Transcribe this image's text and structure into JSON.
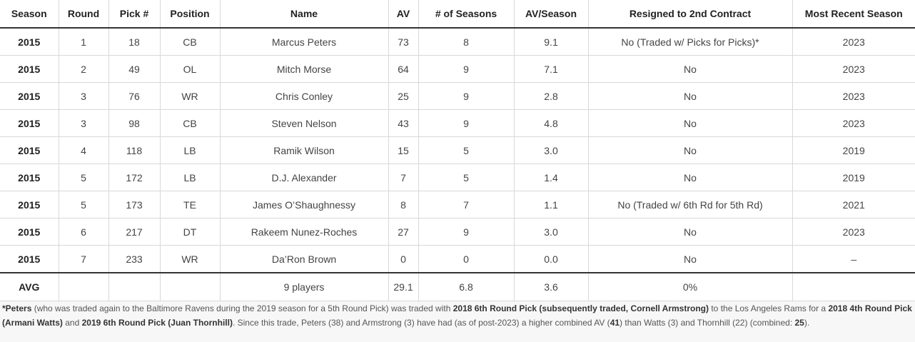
{
  "columns": [
    "Season",
    "Round",
    "Pick #",
    "Position",
    "Name",
    "AV",
    "# of Seasons",
    "AV/Season",
    "Resigned to 2nd Contract",
    "Most Recent Season"
  ],
  "rows": [
    [
      "2015",
      "1",
      "18",
      "CB",
      "Marcus Peters",
      "73",
      "8",
      "9.1",
      "No (Traded w/ Picks for Picks)*",
      "2023"
    ],
    [
      "2015",
      "2",
      "49",
      "OL",
      "Mitch Morse",
      "64",
      "9",
      "7.1",
      "No",
      "2023"
    ],
    [
      "2015",
      "3",
      "76",
      "WR",
      "Chris Conley",
      "25",
      "9",
      "2.8",
      "No",
      "2023"
    ],
    [
      "2015",
      "3",
      "98",
      "CB",
      "Steven Nelson",
      "43",
      "9",
      "4.8",
      "No",
      "2023"
    ],
    [
      "2015",
      "4",
      "118",
      "LB",
      "Ramik Wilson",
      "15",
      "5",
      "3.0",
      "No",
      "2019"
    ],
    [
      "2015",
      "5",
      "172",
      "LB",
      "D.J. Alexander",
      "7",
      "5",
      "1.4",
      "No",
      "2019"
    ],
    [
      "2015",
      "5",
      "173",
      "TE",
      "James O’Shaughnessy",
      "8",
      "7",
      "1.1",
      "No (Traded w/ 6th Rd for 5th Rd)",
      "2021"
    ],
    [
      "2015",
      "6",
      "217",
      "DT",
      "Rakeem Nunez-Roches",
      "27",
      "9",
      "3.0",
      "No",
      "2023"
    ],
    [
      "2015",
      "7",
      "233",
      "WR",
      "Da’Ron Brown",
      "0",
      "0",
      "0.0",
      "No",
      "–"
    ]
  ],
  "footer": [
    "AVG",
    "",
    "",
    "",
    "9 players",
    "29.1",
    "6.8",
    "3.6",
    "0%",
    ""
  ],
  "footnote": [
    {
      "t": "*Peters",
      "b": true
    },
    {
      "t": " (who was traded again to the Baltimore Ravens during the 2019 season for a 5th Round Pick) was traded with ",
      "b": false
    },
    {
      "t": "2018 6th Round Pick (subsequently traded, Cornell Armstrong)",
      "b": true
    },
    {
      "t": " to the Los Angeles Rams for a ",
      "b": false
    },
    {
      "t": "2018 4th Round Pick (Armani Watts)",
      "b": true
    },
    {
      "t": " and ",
      "b": false
    },
    {
      "t": "2019 6th Round Pick (Juan Thornhill)",
      "b": true
    },
    {
      "t": ". Since this trade, Peters (38) and Armstrong (3) have had (as of post-2023) a higher combined AV (",
      "b": false
    },
    {
      "t": "41",
      "b": true
    },
    {
      "t": ") than Watts (3) and Thornhill (22) (combined: ",
      "b": false
    },
    {
      "t": "25",
      "b": true
    },
    {
      "t": ").",
      "b": false
    }
  ]
}
